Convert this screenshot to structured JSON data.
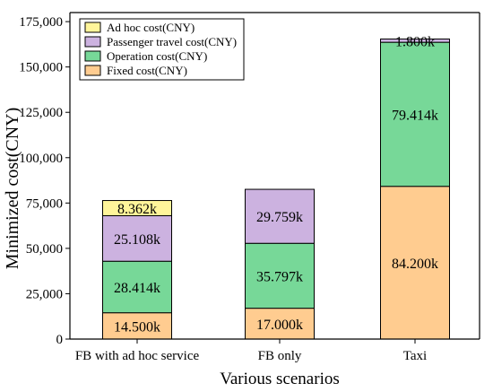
{
  "chart_data": {
    "type": "bar",
    "stacked": true,
    "categories": [
      "FB with ad hoc service",
      "FB only",
      "Taxi"
    ],
    "series": [
      {
        "name": "Fixed cost(CNY)",
        "color": "#FFCC90",
        "values": [
          14500,
          17000,
          84200
        ],
        "labels": [
          "14.500k",
          "17.000k",
          "84.200k"
        ]
      },
      {
        "name": "Operation cost(CNY)",
        "color": "#77D898",
        "values": [
          28414,
          35797,
          79414
        ],
        "labels": [
          "28.414k",
          "35.797k",
          "79.414k"
        ]
      },
      {
        "name": "Passenger travel cost(CNY)",
        "color": "#CCB2E0",
        "values": [
          25108,
          29759,
          1800
        ],
        "labels": [
          "25.108k",
          "29.759k",
          "1.800k"
        ]
      },
      {
        "name": "Ad hoc cost(CNY)",
        "color": "#FFF59A",
        "values": [
          8362,
          0,
          0
        ],
        "labels": [
          "8.362k",
          "",
          ""
        ]
      }
    ],
    "ylabel": "Minimized cost(CNY)",
    "xlabel": "Various scenarios",
    "ylim": [
      0,
      180000
    ],
    "yticks": [
      "0",
      "25,000",
      "50,000",
      "75,000",
      "100,000",
      "125,000",
      "150,000",
      "175,000"
    ],
    "ytick_values": [
      0,
      25000,
      50000,
      75000,
      100000,
      125000,
      150000,
      175000
    ],
    "legend_position": "top-left",
    "grid": false
  }
}
